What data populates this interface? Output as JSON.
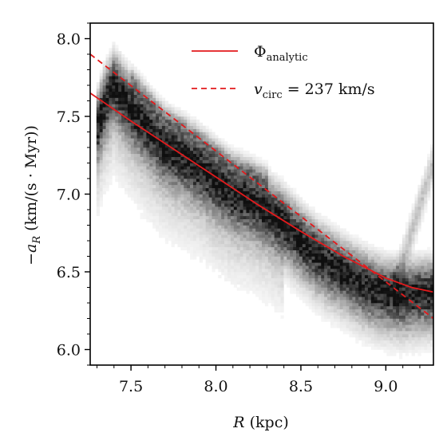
{
  "chart_data": {
    "type": "line",
    "xlabel": "R (kpc)",
    "ylabel": "−a_R (km/(s·Myr))",
    "xlim": [
      7.26,
      9.28
    ],
    "ylim": [
      5.9,
      8.1
    ],
    "xticks": [
      "7.5",
      "8.0",
      "8.5",
      "9.0"
    ],
    "xtick_values": [
      7.5,
      8.0,
      8.5,
      9.0
    ],
    "yticks": [
      "6.0",
      "6.5",
      "7.0",
      "7.5",
      "8.0"
    ],
    "ytick_values": [
      6.0,
      6.5,
      7.0,
      7.5,
      8.0
    ],
    "legend_position": "top-right",
    "series": [
      {
        "name": "Φ",
        "name_sub": "analytic",
        "color": "#e31a1c",
        "style": "solid",
        "x": [
          7.26,
          7.5,
          7.75,
          8.0,
          8.25,
          8.5,
          8.75,
          9.0,
          9.15,
          9.28
        ],
        "y": [
          7.65,
          7.47,
          7.29,
          7.11,
          6.93,
          6.76,
          6.6,
          6.46,
          6.4,
          6.37
        ]
      },
      {
        "name": "v",
        "name_sub": "circ",
        "name_rest": " = 237 km/s",
        "color": "#e31a1c",
        "style": "dashed",
        "x": [
          7.26,
          9.28
        ],
        "y": [
          7.9,
          6.2
        ]
      }
    ],
    "density_ridge": {
      "x": [
        7.3,
        7.35,
        7.4,
        7.5,
        7.6,
        7.7,
        7.8,
        7.9,
        8.0,
        8.1,
        8.2,
        8.3,
        8.4,
        8.5,
        8.6,
        8.7,
        8.8,
        8.9,
        9.0,
        9.1,
        9.2
      ],
      "y": [
        7.45,
        7.62,
        7.72,
        7.57,
        7.44,
        7.32,
        7.26,
        7.19,
        7.1,
        7.02,
        6.98,
        6.92,
        6.83,
        6.72,
        6.62,
        6.55,
        6.48,
        6.42,
        6.38,
        6.36,
        6.38
      ]
    }
  }
}
